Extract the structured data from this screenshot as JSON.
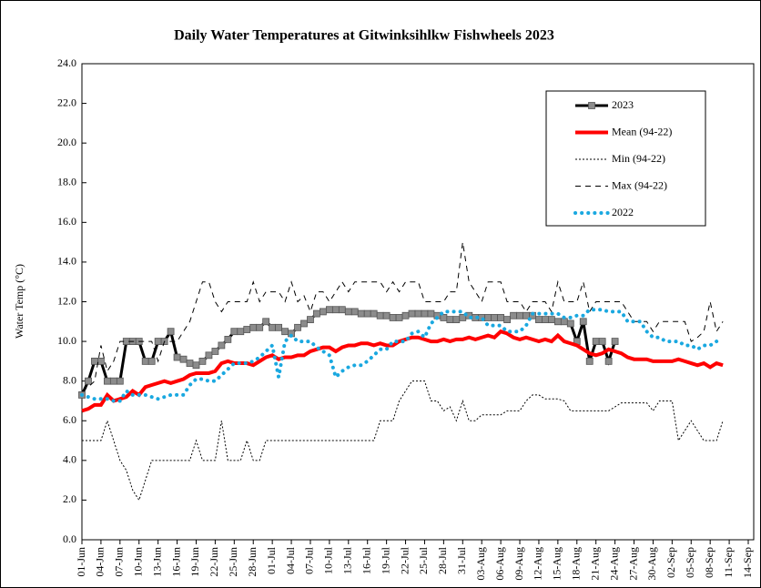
{
  "chart_data": {
    "type": "line",
    "title": "Daily Water Temperatures at Gitwinksihlkw Fishwheels 2023",
    "y_label": "Water Temp (°C)",
    "categories": [
      "01-Jun",
      null,
      null,
      "04-Jun",
      null,
      null,
      "07-Jun",
      null,
      null,
      "10-Jun",
      null,
      null,
      "13-Jun",
      null,
      null,
      "16-Jun",
      null,
      null,
      "19-Jun",
      null,
      null,
      "22-Jun",
      null,
      null,
      "25-Jun",
      null,
      null,
      "28-Jun",
      null,
      null,
      "01-Jul",
      null,
      null,
      "04-Jul",
      null,
      null,
      "07-Jul",
      null,
      null,
      "10-Jul",
      null,
      null,
      "13-Jul",
      null,
      null,
      "16-Jul",
      null,
      null,
      "19-Jul",
      null,
      null,
      "22-Jul",
      null,
      null,
      "25-Jul",
      null,
      null,
      "28-Jul",
      null,
      null,
      "31-Jul",
      null,
      null,
      "03-Aug",
      null,
      null,
      "06-Aug",
      null,
      null,
      "09-Aug",
      null,
      null,
      "12-Aug",
      null,
      null,
      "15-Aug",
      null,
      null,
      "18-Aug",
      null,
      null,
      "21-Aug",
      null,
      null,
      "24-Aug",
      null,
      null,
      "27-Aug",
      null,
      null,
      "30-Aug",
      null,
      null,
      "02-Sep",
      null,
      null,
      "05-Sep",
      null,
      null,
      "08-Sep",
      null,
      null,
      "11-Sep",
      null,
      null,
      "14-Sep"
    ],
    "ylim": [
      0,
      24
    ],
    "yticks": [
      {
        "value": 0,
        "label": "0.0"
      },
      {
        "value": 2,
        "label": "2.0"
      },
      {
        "value": 4,
        "label": "4.0"
      },
      {
        "value": 6,
        "label": "6.0"
      },
      {
        "value": 8,
        "label": "8.0"
      },
      {
        "value": 10,
        "label": "10.0"
      },
      {
        "value": 12,
        "label": "12.0"
      },
      {
        "value": 14,
        "label": "14.0"
      },
      {
        "value": 16,
        "label": "16.0"
      },
      {
        "value": 18,
        "label": "18.0"
      },
      {
        "value": 20,
        "label": "20.0"
      },
      {
        "value": 22,
        "label": "22.0"
      },
      {
        "value": 24,
        "label": "24.0"
      }
    ],
    "grid": false,
    "legend": "upper right",
    "series": [
      {
        "name": "2023",
        "color": "#000000",
        "line_style": "solid",
        "width": 3,
        "marker": "square",
        "marker_color": "#8c8c8c",
        "values": [
          7.3,
          8,
          9,
          9,
          8,
          8,
          8,
          10,
          10,
          10,
          9,
          9,
          10,
          10,
          10.5,
          9.2,
          9.1,
          8.9,
          8.8,
          9,
          9.3,
          9.5,
          9.8,
          10.1,
          10.5,
          10.5,
          10.6,
          10.7,
          10.7,
          11,
          10.7,
          10.7,
          10.5,
          10.4,
          10.7,
          10.9,
          11.1,
          11.4,
          11.5,
          11.6,
          11.6,
          11.6,
          11.5,
          11.5,
          11.4,
          11.4,
          11.4,
          11.3,
          11.3,
          11.2,
          11.2,
          11.3,
          11.4,
          11.4,
          11.4,
          11.4,
          11.3,
          11.2,
          11.1,
          11.1,
          11.2,
          11.3,
          11.2,
          11.2,
          11.2,
          11.2,
          11.2,
          11.1,
          11.3,
          11.3,
          11.3,
          11.3,
          11.1,
          11.1,
          11.1,
          11,
          11,
          10.9,
          10,
          11,
          9,
          10,
          10,
          9,
          10,
          null,
          null,
          null,
          null,
          null,
          null,
          null,
          null,
          null,
          null,
          null,
          null,
          null,
          null,
          null,
          null,
          null,
          null,
          null,
          null,
          null
        ]
      },
      {
        "name": "Mean (94-22)",
        "color": "#ff0000",
        "line_style": "solid",
        "width": 4,
        "marker": "none",
        "values": [
          6.5,
          6.6,
          6.8,
          6.8,
          7.3,
          7,
          7.1,
          7.2,
          7.5,
          7.3,
          7.7,
          7.8,
          7.9,
          8,
          7.9,
          8,
          8.1,
          8.3,
          8.4,
          8.4,
          8.4,
          8.5,
          8.9,
          9,
          8.9,
          8.9,
          8.9,
          8.8,
          9,
          9.2,
          9.3,
          9.1,
          9.2,
          9.2,
          9.3,
          9.3,
          9.5,
          9.6,
          9.7,
          9.7,
          9.5,
          9.7,
          9.8,
          9.8,
          9.9,
          9.9,
          9.8,
          9.9,
          9.8,
          9.8,
          10,
          10.1,
          10.2,
          10.2,
          10.1,
          10,
          10,
          10.1,
          10,
          10.1,
          10.1,
          10.2,
          10.1,
          10.2,
          10.3,
          10.2,
          10.5,
          10.4,
          10.2,
          10.1,
          10.2,
          10.1,
          10,
          10.1,
          10,
          10.3,
          10,
          9.9,
          9.8,
          9.6,
          9.4,
          9.3,
          9.4,
          9.6,
          9.5,
          9.4,
          9.2,
          9.1,
          9.1,
          9.1,
          9,
          9,
          9,
          9,
          9.1,
          9,
          8.9,
          8.8,
          8.9,
          8.7,
          8.9,
          8.8,
          null,
          null,
          null,
          null
        ]
      },
      {
        "name": "Min (94-22)",
        "color": "#000000",
        "line_style": "dotted",
        "width": 1,
        "marker": "none",
        "values": [
          5,
          5,
          5,
          5,
          6,
          5,
          4,
          3.5,
          2.5,
          2,
          3,
          4,
          4,
          4,
          4,
          4,
          4,
          4,
          5,
          4,
          4,
          4,
          6,
          4,
          4,
          4,
          5,
          4,
          4,
          5,
          5,
          5,
          5,
          5,
          5,
          5,
          5,
          5,
          5,
          5,
          5,
          5,
          5,
          5,
          5,
          5,
          5,
          6,
          6,
          6,
          7,
          7.5,
          8,
          8,
          8,
          7,
          7,
          6.5,
          6.7,
          6,
          7,
          6,
          6,
          6.3,
          6.3,
          6.3,
          6.3,
          6.5,
          6.5,
          6.5,
          7,
          7.3,
          7.3,
          7.1,
          7.1,
          7.1,
          7,
          6.5,
          6.5,
          6.5,
          6.5,
          6.5,
          6.5,
          6.5,
          6.7,
          6.9,
          6.9,
          6.9,
          6.9,
          6.9,
          6.5,
          7,
          7,
          7,
          5,
          5.5,
          6,
          5.5,
          5,
          5,
          5,
          6,
          null,
          null,
          null,
          null
        ]
      },
      {
        "name": "Max (94-22)",
        "color": "#000000",
        "line_style": "dashed",
        "width": 1,
        "marker": "none",
        "values": [
          7.5,
          7.7,
          8,
          9.8,
          8.5,
          9,
          10,
          10,
          10,
          10,
          10,
          10,
          9,
          10,
          10,
          10,
          10.5,
          11,
          12,
          13,
          13,
          12,
          11.5,
          12,
          12,
          12,
          12,
          13,
          12,
          12.5,
          12.5,
          12.5,
          12,
          13,
          12,
          12.3,
          11.5,
          12.5,
          12.5,
          12,
          12.5,
          13,
          12.5,
          13,
          13,
          13,
          13,
          13,
          12.5,
          13,
          12.5,
          13,
          13,
          13,
          12,
          12,
          12,
          12,
          12.5,
          12.5,
          15,
          13,
          12.5,
          12,
          13,
          13,
          13,
          12,
          12,
          12,
          11.5,
          12,
          12,
          12,
          11.5,
          13,
          12,
          12,
          12,
          13,
          11.5,
          12,
          12,
          12,
          12,
          12,
          11.5,
          11,
          11,
          11,
          10.5,
          11,
          11,
          11,
          11,
          11,
          10,
          10.2,
          10.5,
          12,
          10.5,
          11,
          null,
          null,
          null,
          null
        ]
      },
      {
        "name": "2022",
        "color": "#1aa8e0",
        "line_style": "dots",
        "width": 4,
        "marker": "none",
        "values": [
          7.3,
          7.2,
          7.1,
          7.1,
          7.1,
          7,
          7,
          7.5,
          7.3,
          7.3,
          7.3,
          7.2,
          7.1,
          7.2,
          7.3,
          7.3,
          7.3,
          7.8,
          8.1,
          8.1,
          8,
          8,
          8.3,
          8.6,
          8.9,
          8.9,
          8.9,
          9,
          9.2,
          9.5,
          9.8,
          8.2,
          10,
          10.3,
          10,
          10,
          10,
          9.7,
          9.5,
          9.3,
          8.2,
          8.5,
          8.7,
          8.8,
          8.8,
          9,
          9.3,
          9.6,
          9.6,
          10,
          10,
          10,
          10.4,
          10.5,
          10.2,
          10.9,
          11.2,
          11.5,
          11.5,
          11.5,
          11.5,
          11.2,
          11.2,
          11.2,
          10.8,
          10.8,
          10.8,
          10.5,
          10.5,
          10.5,
          10.8,
          11.4,
          11.4,
          11.4,
          11.4,
          11.4,
          11.2,
          11.2,
          11.3,
          11.3,
          11.6,
          11.6,
          11.6,
          11.5,
          11.5,
          11.5,
          11,
          11,
          11,
          10.5,
          10.2,
          10.2,
          10,
          10,
          10,
          9.8,
          9.8,
          9.6,
          9.8,
          9.8,
          10,
          null,
          null,
          null,
          null,
          null
        ]
      }
    ]
  }
}
